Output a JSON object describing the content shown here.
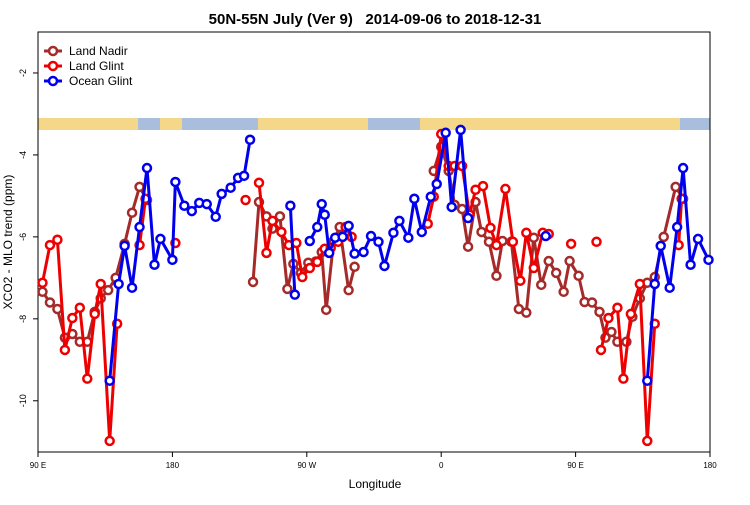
{
  "chart_data": {
    "type": "line",
    "title": "50N-55N July (Ver 9)   2014-09-06 to 2018-12-31",
    "x_label": "Longitude",
    "y_label": "XCO2 - MLO trend (ppm)",
    "xlim": [
      90,
      540
    ],
    "ylim": [
      -11.25,
      -1.0
    ],
    "xticks": [
      {
        "value": 90,
        "label": "90 E"
      },
      180,
      {
        "value": 270,
        "label": "90 W"
      },
      0,
      {
        "value": 450,
        "label": "90 E"
      },
      180
    ],
    "yticks": [
      -2,
      -4,
      -6,
      -8,
      -10
    ],
    "legend": "top-left",
    "series": [
      {
        "name": "Land Nadir",
        "color": "#a52a2a",
        "x": [
          93,
          98,
          103,
          108,
          113,
          118,
          123,
          128,
          132,
          137,
          142,
          148,
          153,
          158,
          163,
          200,
          234,
          238,
          243,
          247,
          252,
          257,
          261,
          266,
          271,
          276,
          280,
          283,
          288,
          292,
          298,
          302,
          330,
          355,
          360,
          365,
          369,
          374,
          378,
          383,
          387,
          392,
          397,
          401,
          407,
          412,
          417,
          422,
          427,
          432,
          437,
          442,
          446,
          452,
          456,
          461,
          466,
          470,
          474,
          478,
          484,
          488,
          493,
          498,
          503,
          509,
          517,
          522
        ],
        "values": [
          -7.34,
          -7.6,
          -7.76,
          -8.46,
          -8.37,
          -8.56,
          -8.56,
          -7.83,
          -7.5,
          -7.3,
          -7.0,
          -6.17,
          -5.41,
          -4.78,
          -5.1,
          null,
          -7.1,
          -5.15,
          -5.5,
          -5.8,
          -5.5,
          -7.27,
          -6.66,
          -6.88,
          -6.63,
          -6.6,
          -6.37,
          -7.78,
          -6.1,
          -5.76,
          -7.3,
          -6.73,
          null,
          -4.39,
          -3.8,
          -4.39,
          -5.22,
          -5.32,
          -6.24,
          -5.15,
          -5.88,
          -6.12,
          -6.95,
          -6.1,
          -6.12,
          -7.76,
          -7.85,
          -6.02,
          -7.17,
          -6.59,
          -6.88,
          -7.34,
          -6.59,
          -6.95,
          -7.59,
          -7.6,
          -7.83,
          -8.46,
          -8.32,
          -8.56,
          -8.56,
          -7.95,
          -7.5,
          -7.12,
          -6.98,
          -6.0,
          -4.78,
          -5.07
        ]
      },
      {
        "name": "Land Glint",
        "color": "#ee0000",
        "x": [
          93,
          98,
          103,
          108,
          113,
          118,
          123,
          128,
          132,
          138,
          143,
          150,
          158,
          162,
          170,
          182,
          200,
          229,
          232,
          238,
          243,
          247,
          253,
          258,
          263,
          267,
          272,
          277,
          282,
          286,
          291,
          296,
          300,
          330,
          351,
          355,
          360,
          365,
          369,
          374,
          379,
          383,
          388,
          393,
          397,
          403,
          408,
          413,
          417,
          422,
          428,
          432,
          440,
          447,
          455,
          464,
          465,
          467,
          472,
          478,
          482,
          487,
          493,
          498,
          503,
          510,
          519,
          521
        ],
        "values": [
          -7.12,
          -6.2,
          -6.07,
          -8.76,
          -7.98,
          -7.73,
          -9.46,
          -7.88,
          -7.15,
          -10.98,
          -8.12,
          null,
          -6.2,
          -5.07,
          null,
          -6.15,
          null,
          -5.1,
          null,
          -4.68,
          -6.39,
          -5.61,
          -5.88,
          -6.2,
          -6.15,
          -6.98,
          -6.76,
          -6.61,
          -6.29,
          -6.27,
          -6.12,
          -5.76,
          -6.0,
          null,
          -5.68,
          -5.02,
          -3.49,
          -4.27,
          -4.27,
          -4.27,
          -5.46,
          -4.85,
          -4.76,
          -5.78,
          -6.2,
          -4.83,
          -6.12,
          -7.07,
          -5.9,
          -6.76,
          -5.9,
          -5.93,
          null,
          -6.17,
          null,
          -6.12,
          null,
          -8.76,
          -7.98,
          -7.73,
          -9.46,
          -7.88,
          -7.15,
          -10.98,
          -8.12,
          null,
          -6.2,
          -5.07
        ]
      },
      {
        "name": "Ocean Glint",
        "color": "#0000ee",
        "x": [
          138,
          144,
          148,
          153,
          158,
          163,
          168,
          172,
          180,
          182,
          188,
          193,
          198,
          203,
          209,
          213,
          219,
          224,
          228,
          232,
          245,
          259,
          262,
          266,
          272,
          277,
          280,
          282,
          285,
          289,
          294,
          298,
          302,
          308,
          313,
          318,
          322,
          328,
          332,
          338,
          342,
          347,
          353,
          357,
          363,
          367,
          373,
          378,
          400,
          430,
          460,
          498,
          503,
          507,
          513,
          518,
          522,
          527,
          532,
          539
        ],
        "values": [
          -9.51,
          -7.15,
          -6.22,
          -7.24,
          -5.76,
          -4.32,
          -6.68,
          -6.05,
          -6.56,
          -4.66,
          -5.24,
          -5.37,
          -5.17,
          -5.2,
          -5.51,
          -4.95,
          -4.8,
          -4.56,
          -4.51,
          -3.63,
          null,
          -5.24,
          -7.41,
          null,
          -6.1,
          -5.76,
          -5.2,
          -5.46,
          -6.39,
          -6.02,
          -6.0,
          -5.73,
          -6.41,
          -6.37,
          -5.98,
          -6.12,
          -6.71,
          -5.9,
          -5.61,
          -6.02,
          -5.07,
          -5.88,
          -5.02,
          -4.71,
          -3.46,
          -5.27,
          -3.39,
          -5.54,
          null,
          -5.98,
          null,
          -9.51,
          -7.15,
          -6.22,
          -7.24,
          -5.76,
          -4.32,
          -6.68,
          -6.05,
          -6.56
        ]
      }
    ]
  }
}
